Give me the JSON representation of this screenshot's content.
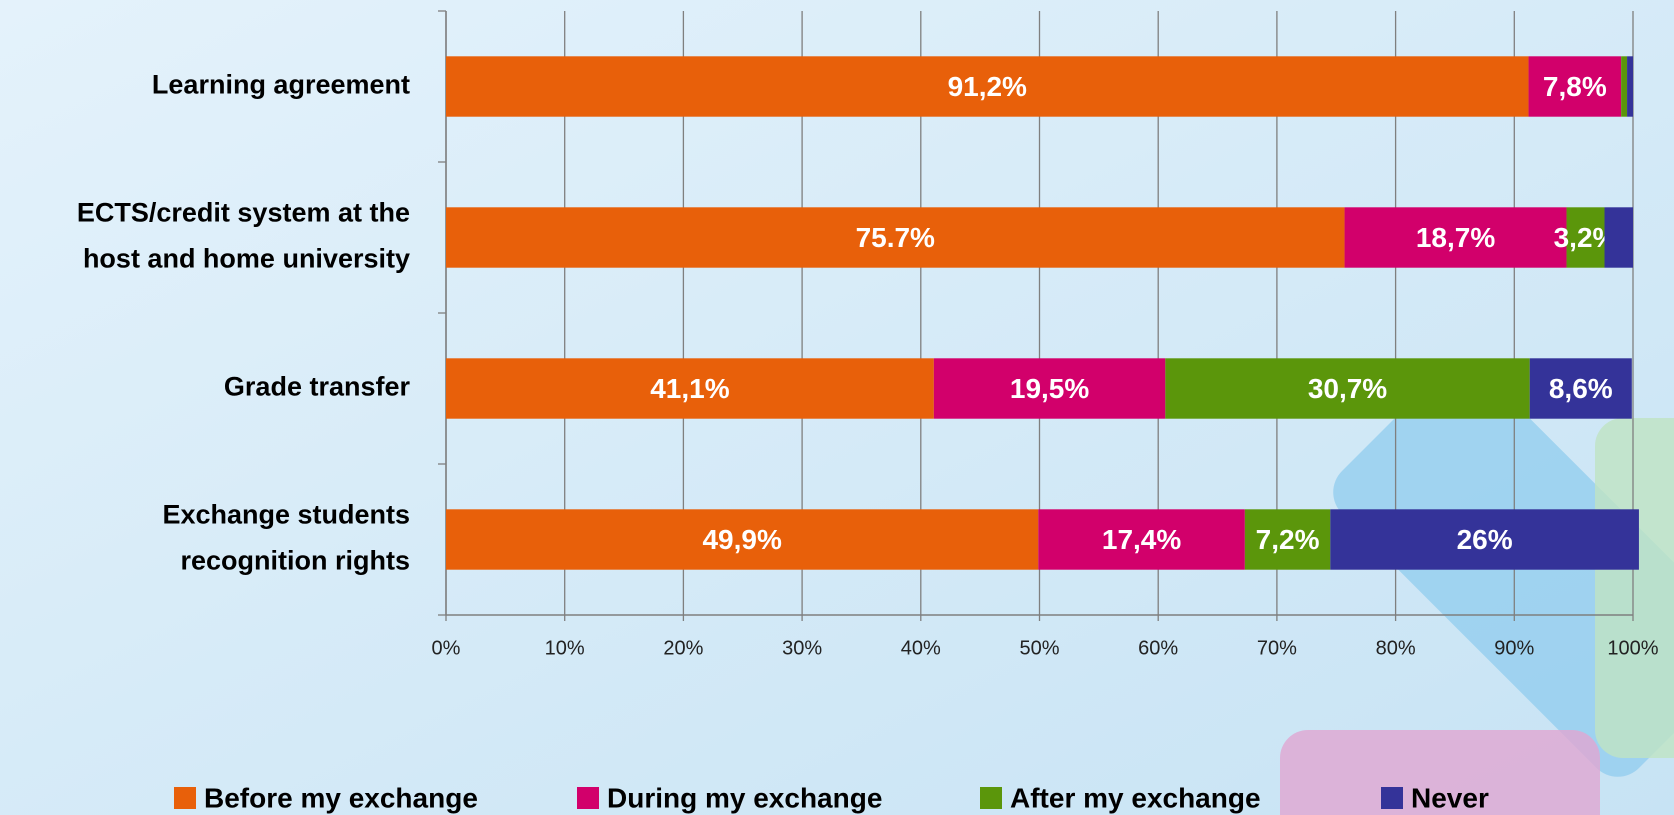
{
  "chart_data": {
    "type": "stacked_barh",
    "categories": [
      "Learning agreement",
      "ECTS/credit system at the\nhost and home university",
      "Grade transfer",
      "Exchange students\nrecognition rights"
    ],
    "series": [
      {
        "name": "Before my exchange",
        "color": "#e8600a",
        "values": [
          91.2,
          75.7,
          41.1,
          49.9
        ],
        "value_labels": [
          "91,2%",
          "75.7%",
          "41,1%",
          "49,9%"
        ]
      },
      {
        "name": "During my exchange",
        "color": "#d2006b",
        "values": [
          7.8,
          18.7,
          19.5,
          17.4
        ],
        "value_labels": [
          "7,8%",
          "18,7%",
          "19,5%",
          "17,4%"
        ]
      },
      {
        "name": "After my exchange",
        "color": "#5b960b",
        "values": [
          0.5,
          3.2,
          30.7,
          7.2
        ],
        "value_labels": [
          null,
          "3,2%",
          "30,7%",
          "7,2%"
        ]
      },
      {
        "name": "Never",
        "color": "#343399",
        "values": [
          0.5,
          2.4,
          8.6,
          26
        ],
        "value_labels": [
          null,
          null,
          "8,6%",
          "26%"
        ]
      }
    ],
    "xlim": [
      0,
      100
    ],
    "xticks": [
      {
        "value": 0,
        "label": "0%"
      },
      {
        "value": 10,
        "label": "10%"
      },
      {
        "value": 20,
        "label": "20%"
      },
      {
        "value": 30,
        "label": "30%"
      },
      {
        "value": 40,
        "label": "40%"
      },
      {
        "value": 50,
        "label": "50%"
      },
      {
        "value": 60,
        "label": "60%"
      },
      {
        "value": 70,
        "label": "70%"
      },
      {
        "value": 80,
        "label": "80%"
      },
      {
        "value": 90,
        "label": "90%"
      },
      {
        "value": 100,
        "label": "100%"
      }
    ],
    "grid": true,
    "legend": "bottom"
  }
}
